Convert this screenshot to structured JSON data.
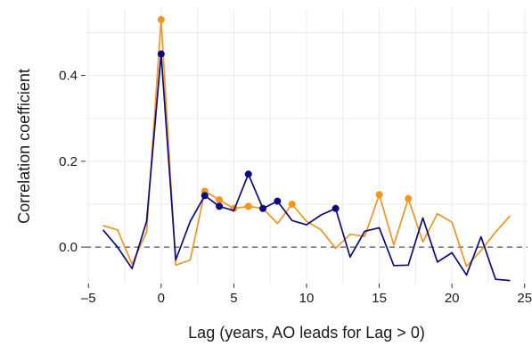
{
  "chart_data": {
    "type": "line",
    "xlabel": "Lag (years, AO leads for Lag > 0)",
    "ylabel": "Correlation coefficient",
    "xlim": [
      -5.2,
      25.2
    ],
    "ylim": [
      -0.085,
      0.555
    ],
    "x_ticks": [
      -5,
      0,
      5,
      10,
      15,
      20,
      25
    ],
    "x_tick_labels": [
      "–5",
      "0",
      "5",
      "10",
      "15",
      "20",
      "25"
    ],
    "y_ticks": [
      0.0,
      0.2,
      0.4
    ],
    "y_tick_labels": [
      "0.0",
      "0.2",
      "0.4"
    ],
    "grid": true,
    "reference_line": {
      "y": 0.0,
      "style": "dashed"
    },
    "x": [
      -4,
      -3,
      -2,
      -1,
      0,
      1,
      2,
      3,
      4,
      5,
      6,
      7,
      8,
      9,
      10,
      11,
      12,
      13,
      14,
      15,
      16,
      17,
      18,
      19,
      20,
      21,
      22,
      23,
      24
    ],
    "series": [
      {
        "color": "#F7941D",
        "values": [
          0.05,
          0.04,
          -0.04,
          0.035,
          0.53,
          -0.042,
          -0.03,
          0.13,
          0.11,
          0.09,
          0.095,
          0.09,
          0.055,
          0.1,
          0.06,
          0.04,
          -0.003,
          0.03,
          0.025,
          0.122,
          0.005,
          0.113,
          0.012,
          0.078,
          0.058,
          -0.045,
          -0.008,
          0.035,
          0.073
        ],
        "highlighted_x": [
          0,
          3,
          4,
          5,
          6,
          9,
          15,
          17
        ]
      },
      {
        "color": "#0B0B80",
        "values": [
          0.04,
          0.0,
          -0.05,
          0.06,
          0.45,
          -0.03,
          0.06,
          0.12,
          0.095,
          0.085,
          0.17,
          0.09,
          0.107,
          0.062,
          0.052,
          0.075,
          0.09,
          -0.023,
          0.037,
          0.045,
          -0.043,
          -0.042,
          0.068,
          -0.035,
          -0.013,
          -0.065,
          0.024,
          -0.075,
          -0.078
        ],
        "highlighted_x": [
          0,
          3,
          4,
          6,
          7,
          8,
          12
        ]
      }
    ]
  }
}
